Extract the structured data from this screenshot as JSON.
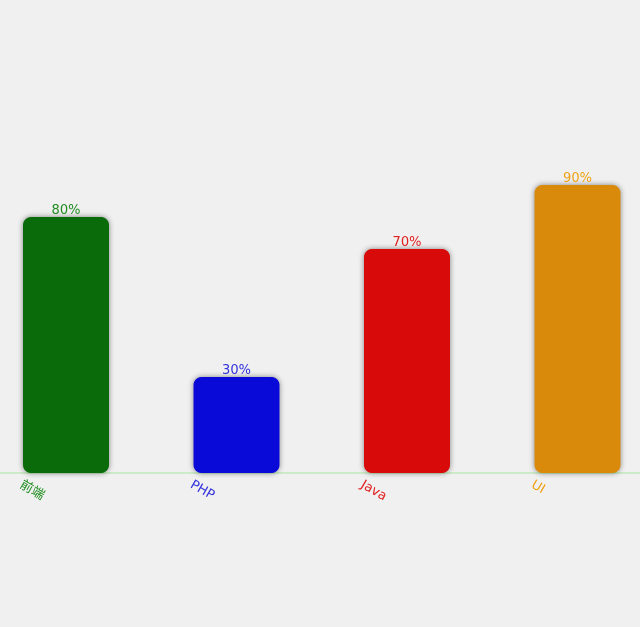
{
  "chart_data": {
    "type": "bar",
    "categories": [
      "前端",
      "PHP",
      "Java",
      "UI"
    ],
    "values": [
      80,
      30,
      70,
      90
    ],
    "value_labels": [
      "80%",
      "30%",
      "70%",
      "90%"
    ],
    "colors": [
      "#0a6b0a",
      "#0a0ad8",
      "#d90a0a",
      "#d98a0a"
    ],
    "label_colors": [
      "#1f8c1f",
      "#3333dd",
      "#e02020",
      "#f0a010"
    ],
    "baseline_color": "#a8e6a0",
    "ylim": [
      0,
      100
    ],
    "grid": false,
    "title": "",
    "xlabel": "",
    "ylabel": ""
  }
}
